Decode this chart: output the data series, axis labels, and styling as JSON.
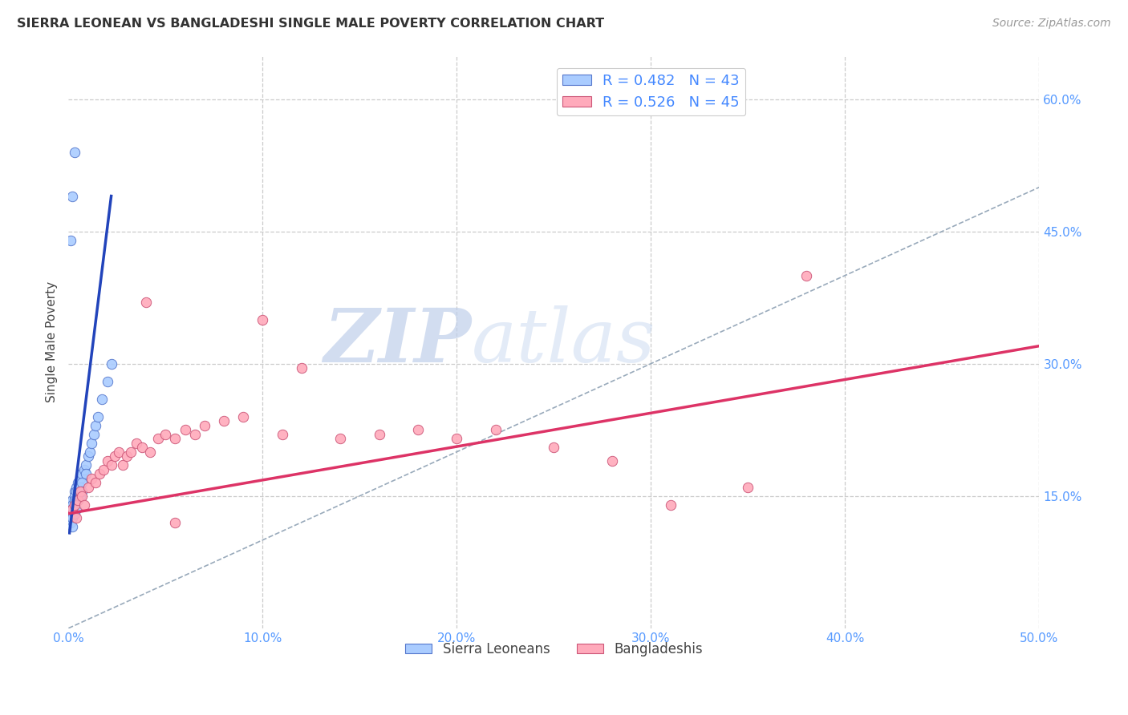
{
  "title": "SIERRA LEONEAN VS BANGLADESHI SINGLE MALE POVERTY CORRELATION CHART",
  "source": "Source: ZipAtlas.com",
  "ylabel": "Single Male Poverty",
  "xlim": [
    0.0,
    0.5
  ],
  "ylim": [
    0.0,
    0.65
  ],
  "legend1_label": "R = 0.482   N = 43",
  "legend2_label": "R = 0.526   N = 45",
  "legend_text_color": "#4488ff",
  "sl_color": "#aaccff",
  "bd_color": "#ffaabb",
  "sl_edge_color": "#5577cc",
  "bd_edge_color": "#cc5577",
  "sl_line_color": "#2244bb",
  "bd_line_color": "#dd3366",
  "diag_color": "#99aabb",
  "background_color": "#ffffff",
  "grid_color": "#cccccc",
  "tick_color": "#5599ff",
  "title_color": "#333333",
  "sl_scatter_x": [
    0.001,
    0.001,
    0.001,
    0.001,
    0.002,
    0.002,
    0.002,
    0.002,
    0.002,
    0.002,
    0.003,
    0.003,
    0.003,
    0.003,
    0.003,
    0.004,
    0.004,
    0.004,
    0.004,
    0.005,
    0.005,
    0.005,
    0.006,
    0.006,
    0.006,
    0.007,
    0.007,
    0.007,
    0.008,
    0.009,
    0.009,
    0.01,
    0.011,
    0.012,
    0.013,
    0.014,
    0.015,
    0.017,
    0.02,
    0.022,
    0.001,
    0.002,
    0.003
  ],
  "sl_scatter_y": [
    0.135,
    0.13,
    0.125,
    0.12,
    0.145,
    0.14,
    0.135,
    0.13,
    0.125,
    0.115,
    0.155,
    0.15,
    0.145,
    0.14,
    0.13,
    0.16,
    0.155,
    0.145,
    0.135,
    0.165,
    0.155,
    0.145,
    0.17,
    0.16,
    0.15,
    0.175,
    0.165,
    0.155,
    0.18,
    0.185,
    0.175,
    0.195,
    0.2,
    0.21,
    0.22,
    0.23,
    0.24,
    0.26,
    0.28,
    0.3,
    0.44,
    0.49,
    0.54
  ],
  "bd_scatter_x": [
    0.002,
    0.003,
    0.004,
    0.005,
    0.006,
    0.007,
    0.008,
    0.01,
    0.012,
    0.014,
    0.016,
    0.018,
    0.02,
    0.022,
    0.024,
    0.026,
    0.028,
    0.03,
    0.032,
    0.035,
    0.038,
    0.042,
    0.046,
    0.05,
    0.055,
    0.06,
    0.065,
    0.07,
    0.08,
    0.09,
    0.1,
    0.11,
    0.12,
    0.14,
    0.16,
    0.18,
    0.2,
    0.22,
    0.25,
    0.28,
    0.31,
    0.35,
    0.38,
    0.04,
    0.055
  ],
  "bd_scatter_y": [
    0.135,
    0.14,
    0.125,
    0.145,
    0.155,
    0.15,
    0.14,
    0.16,
    0.17,
    0.165,
    0.175,
    0.18,
    0.19,
    0.185,
    0.195,
    0.2,
    0.185,
    0.195,
    0.2,
    0.21,
    0.205,
    0.2,
    0.215,
    0.22,
    0.215,
    0.225,
    0.22,
    0.23,
    0.235,
    0.24,
    0.35,
    0.22,
    0.295,
    0.215,
    0.22,
    0.225,
    0.215,
    0.225,
    0.205,
    0.19,
    0.14,
    0.16,
    0.4,
    0.37,
    0.12
  ],
  "sl_line_x": [
    0.0005,
    0.022
  ],
  "sl_line_y": [
    0.108,
    0.49
  ],
  "bd_line_x": [
    0.0,
    0.5
  ],
  "bd_line_y": [
    0.13,
    0.32
  ],
  "watermark_zip": "ZIP",
  "watermark_atlas": "atlas",
  "marker_size": 80
}
